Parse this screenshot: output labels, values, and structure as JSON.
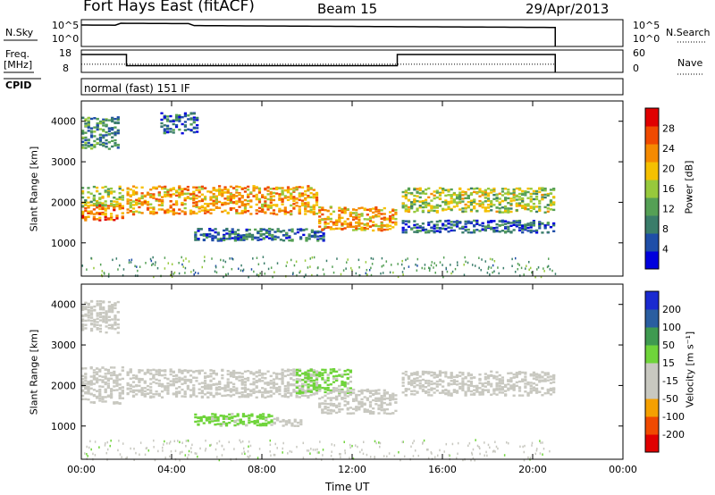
{
  "header": {
    "station": "Fort Hays East (fitACF)",
    "beam": "Beam 15",
    "date": "29/Apr/2013"
  },
  "aux_panels": {
    "nsky_label": "N.Sky",
    "nsky_ticks": [
      "10^5",
      "10^0"
    ],
    "nsearch_label": "N.Search",
    "nsearch_ticks": [
      "10^5",
      "10^0"
    ],
    "freq_label_line1": "Freq.",
    "freq_label_line2": "[MHz]",
    "freq_ticks": [
      "18",
      "8"
    ],
    "nave_label": "Nave",
    "nave_ticks": [
      "60",
      "0"
    ],
    "cpid_label": "CPID",
    "cpid_text": "normal (fast) 151 IF"
  },
  "colors": {
    "power_scale": [
      "#0000dd",
      "#1f4ea8",
      "#3a7d6a",
      "#55a055",
      "#97c93c",
      "#f5c000",
      "#f58a00",
      "#f04a00",
      "#e00000"
    ],
    "velocity_scale": [
      "#e00000",
      "#f04a00",
      "#f5a000",
      "#c8c8c0",
      "#c8c8c0",
      "#6fd43a",
      "#3f9a50",
      "#2a5ea0",
      "#1a2ad0"
    ]
  },
  "chart_data": [
    {
      "type": "heatmap",
      "name": "power",
      "xlabel": "",
      "ylabel": "Slant Range [km]",
      "yticks": [
        "1000",
        "2000",
        "3000",
        "4000"
      ],
      "colorbar_label": "Power [dB]",
      "colorbar_ticks": [
        "4",
        "8",
        "12",
        "16",
        "20",
        "24",
        "28"
      ],
      "colorbar_range": [
        0,
        32
      ],
      "ylim": [
        180,
        4500
      ],
      "xlim": [
        "00:00",
        "24:00"
      ],
      "scatter_regions": [
        {
          "t0": 0.0,
          "t1": 1.9,
          "r_center": 1750,
          "r_halfwidth": 200,
          "value": 24
        },
        {
          "t0": 0.0,
          "t1": 1.9,
          "r_center": 2150,
          "r_halfwidth": 250,
          "value": 16
        },
        {
          "t0": 0.0,
          "t1": 1.7,
          "r_center": 3700,
          "r_halfwidth": 400,
          "value": 10
        },
        {
          "t0": 2.0,
          "t1": 10.5,
          "r_center": 2050,
          "r_halfwidth": 350,
          "value": 22
        },
        {
          "t0": 3.5,
          "t1": 5.2,
          "r_center": 3950,
          "r_halfwidth": 250,
          "value": 7
        },
        {
          "t0": 5.0,
          "t1": 10.8,
          "r_center": 1200,
          "r_halfwidth": 150,
          "value": 8
        },
        {
          "t0": 10.5,
          "t1": 14.0,
          "r_center": 1600,
          "r_halfwidth": 300,
          "value": 22
        },
        {
          "t0": 14.2,
          "t1": 21.0,
          "r_center": 2050,
          "r_halfwidth": 300,
          "value": 16
        },
        {
          "t0": 14.2,
          "t1": 21.0,
          "r_center": 1400,
          "r_halfwidth": 150,
          "value": 7
        }
      ]
    },
    {
      "type": "heatmap",
      "name": "velocity",
      "xlabel": "Time UT",
      "ylabel": "Slant Range [km]",
      "yticks": [
        "1000",
        "2000",
        "3000",
        "4000"
      ],
      "xticks": [
        "00:00",
        "04:00",
        "08:00",
        "12:00",
        "16:00",
        "20:00",
        "00:00"
      ],
      "colorbar_label": "Velocity [m s⁻¹]",
      "colorbar_ticks": [
        "-200",
        "-100",
        "-50",
        "-15",
        "15",
        "50",
        "100",
        "200"
      ],
      "colorbar_range": [
        -250,
        250
      ],
      "ylim": [
        180,
        4500
      ],
      "xlim": [
        "00:00",
        "24:00"
      ],
      "scatter_regions": [
        {
          "t0": 0.0,
          "t1": 1.9,
          "r_center": 2000,
          "r_halfwidth": 450,
          "value": -5
        },
        {
          "t0": 0.0,
          "t1": 1.7,
          "r_center": 3700,
          "r_halfwidth": 400,
          "value": -60
        },
        {
          "t0": 2.0,
          "t1": 10.5,
          "r_center": 2050,
          "r_halfwidth": 350,
          "value": 0
        },
        {
          "t0": 5.0,
          "t1": 8.5,
          "r_center": 1150,
          "r_halfwidth": 150,
          "value": 35
        },
        {
          "t0": 8.5,
          "t1": 9.8,
          "r_center": 1100,
          "r_halfwidth": 100,
          "value": -60
        },
        {
          "t0": 9.5,
          "t1": 12.0,
          "r_center": 2100,
          "r_halfwidth": 300,
          "value": 35
        },
        {
          "t0": 10.5,
          "t1": 14.0,
          "r_center": 1600,
          "r_halfwidth": 300,
          "value": 0
        },
        {
          "t0": 14.2,
          "t1": 21.0,
          "r_center": 2050,
          "r_halfwidth": 300,
          "value": 0
        }
      ]
    }
  ]
}
